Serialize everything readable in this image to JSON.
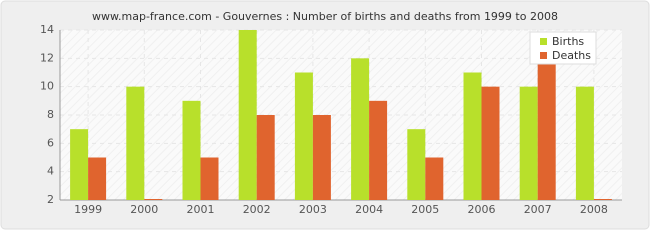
{
  "chart_data": {
    "type": "bar",
    "title": "www.map-france.com - Gouvernes : Number of births and deaths from 1999 to 2008",
    "categories": [
      "1999",
      "2000",
      "2001",
      "2002",
      "2003",
      "2004",
      "2005",
      "2006",
      "2007",
      "2008"
    ],
    "series": [
      {
        "name": "Births",
        "color": "#b8e02b",
        "values": [
          7,
          10,
          9,
          14,
          11,
          12,
          7,
          11,
          10,
          10
        ]
      },
      {
        "name": "Deaths",
        "color": "#e0642e",
        "values": [
          5,
          2,
          5,
          8,
          8,
          9,
          5,
          10,
          12,
          2
        ]
      }
    ],
    "ylim": [
      2,
      14
    ],
    "yticks": [
      2,
      4,
      6,
      8,
      10,
      12,
      14
    ],
    "grid": true,
    "legend": "top-right"
  }
}
